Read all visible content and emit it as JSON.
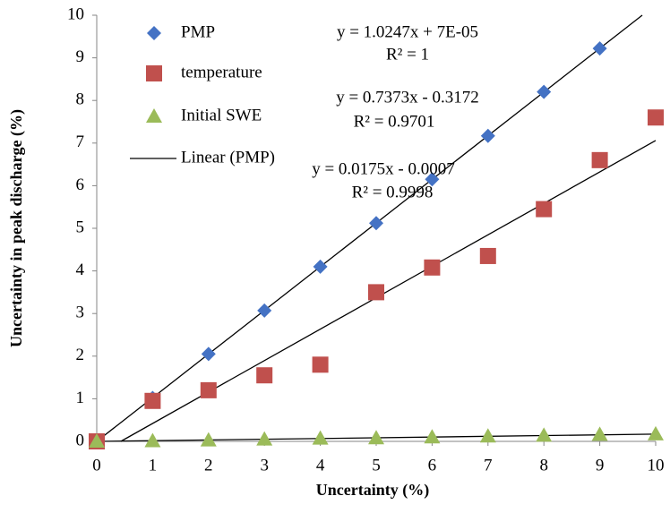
{
  "chart_data": {
    "type": "scatter",
    "x_label": "Uncertainty (%)",
    "y_label": "Uncertainty in peak discharge (%)",
    "xlim": [
      0,
      10
    ],
    "ylim": [
      0,
      10
    ],
    "xticks": [
      0,
      1,
      2,
      3,
      4,
      5,
      6,
      7,
      8,
      9,
      10
    ],
    "yticks": [
      0,
      1,
      2,
      3,
      4,
      5,
      6,
      7,
      8,
      9,
      10
    ],
    "grid": false,
    "legend": "upper left",
    "series": [
      {
        "name": "PMP",
        "color": "#4472c4",
        "marker": "diamond",
        "x": [
          0,
          1,
          2,
          3,
          4,
          5,
          6,
          7,
          8,
          9
        ],
        "values": [
          0,
          1.02,
          2.05,
          3.07,
          4.1,
          5.12,
          6.15,
          7.17,
          8.2,
          9.22
        ]
      },
      {
        "name": "temperature",
        "color": "#c0504d",
        "marker": "square",
        "x": [
          0,
          1,
          2,
          3,
          4,
          5,
          6,
          7,
          8,
          9,
          10
        ],
        "values": [
          0,
          0.95,
          1.2,
          1.55,
          1.8,
          3.5,
          4.08,
          4.35,
          5.45,
          6.6,
          7.6
        ]
      },
      {
        "name": "Initial SWE",
        "color": "#9bbb59",
        "marker": "triangle",
        "x": [
          0,
          1,
          2,
          3,
          4,
          5,
          6,
          7,
          8,
          9,
          10
        ],
        "values": [
          0,
          0.01,
          0.03,
          0.05,
          0.07,
          0.08,
          0.1,
          0.12,
          0.14,
          0.16,
          0.17
        ]
      }
    ],
    "trendlines": [
      {
        "name": "Linear (PMP)",
        "color": "#000000",
        "x": [
          0,
          9.76
        ],
        "values": [
          0,
          10
        ]
      },
      {
        "color": "#000000",
        "x": [
          0.43,
          10
        ],
        "values": [
          0,
          7.06
        ]
      },
      {
        "color": "#000000",
        "x": [
          0.04,
          10
        ],
        "values": [
          0,
          0.17
        ]
      }
    ],
    "annotations": [
      "y = 1.0247x + 7E-05",
      "R² = 1",
      "y = 0.7373x - 0.3172",
      "R² = 0.9701",
      "y = 0.0175x - 0.0007",
      "R² = 0.9998"
    ]
  }
}
